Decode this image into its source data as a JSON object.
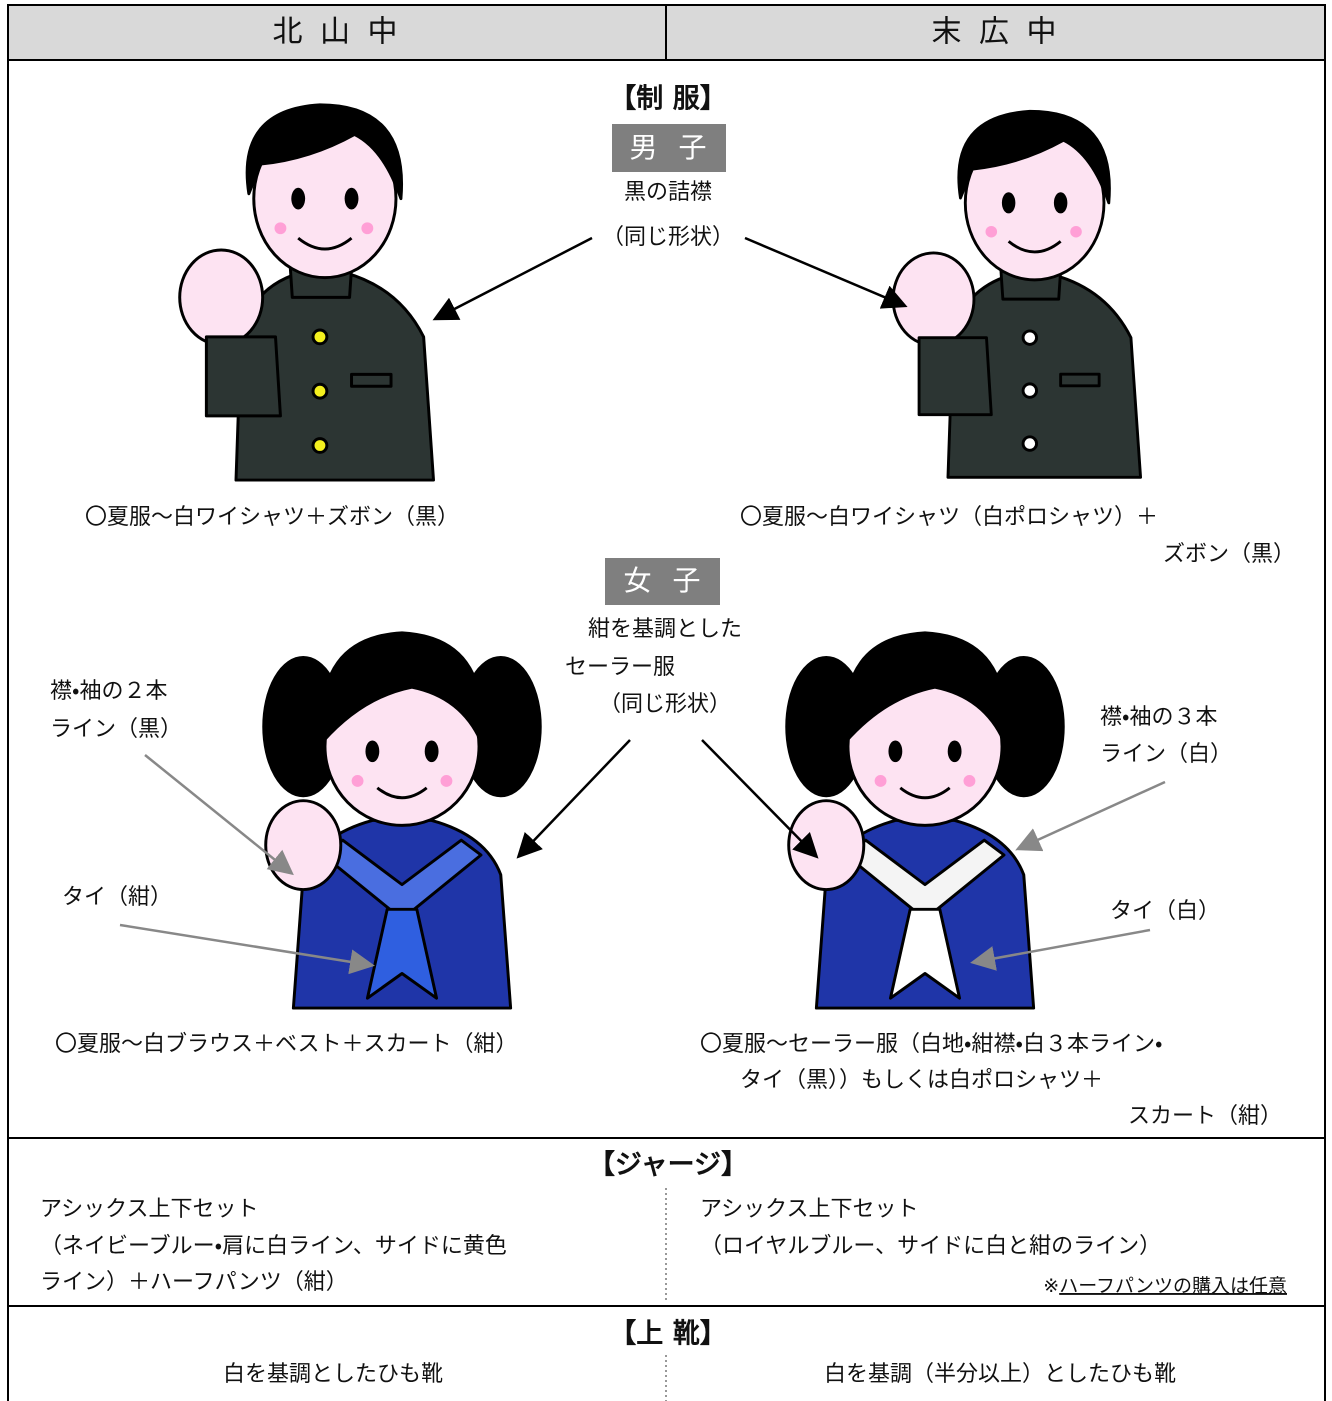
{
  "header": {
    "left": "北 山 中",
    "right": "末 広 中"
  },
  "uniform": {
    "title": "【制 服】",
    "boys": {
      "label": "男 子",
      "common": [
        "黒の詰襟",
        "（同じ形状）"
      ],
      "left_summer": [
        "〇夏服～白ワイシャツ＋ズボン（黒）"
      ],
      "right_summer": [
        "〇夏服～白ワイシャツ（白ポロシャツ）＋",
        "ズボン（黒）"
      ]
    },
    "girls": {
      "label": "女 子",
      "common": [
        "紺を基調とした",
        "セーラー服",
        "（同じ形状）"
      ],
      "left_lines": [
        "襟・袖の２本",
        "ライン（黒）"
      ],
      "left_tie": "タイ（紺）",
      "right_lines": [
        "襟・袖の３本",
        "ライン（白）"
      ],
      "right_tie": "タイ（白）",
      "left_summer": [
        "〇夏服～白ブラウス＋ベスト＋スカート（紺）"
      ],
      "right_summer": [
        "〇夏服～セーラー服（白地・紺襟・白３本ライン・",
        "タイ（黒））もしくは白ポロシャツ＋",
        "スカート（紺）"
      ]
    }
  },
  "jersey": {
    "title": "【ジャージ】",
    "left": [
      "アシックス上下セット",
      "（ネイビーブルー・肩に白ライン、サイドに黄色",
      "ライン）＋ハーフパンツ（紺）"
    ],
    "right": [
      "アシックス上下セット",
      "（ロイヤルブルー、サイドに白と紺のライン）"
    ],
    "note_mark": "※",
    "note": "ハーフパンツの購入は任意"
  },
  "shoes": {
    "title": "【上 靴】",
    "left": "白を基調としたひも靴",
    "right": "白を基調（半分以上）としたひも靴"
  }
}
